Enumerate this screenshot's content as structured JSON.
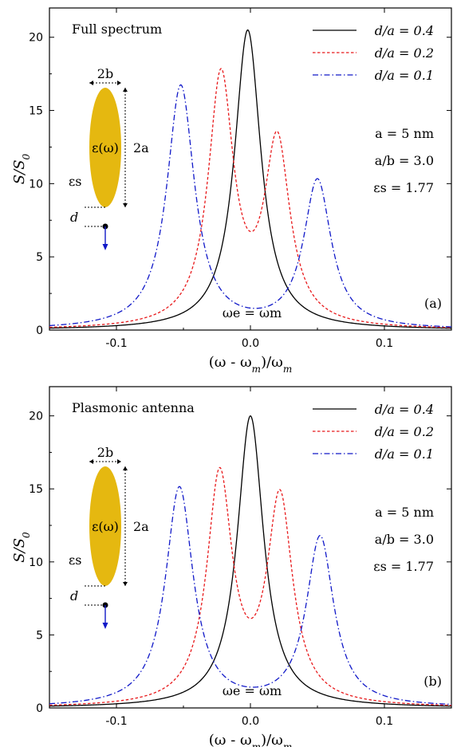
{
  "chart_data": [
    {
      "type": "line",
      "panel_label": "(a)",
      "title": "Full spectrum",
      "xlabel": "(ω - ω_m)/ω_m",
      "ylabel": "S/S_0",
      "xlim": [
        -0.15,
        0.15
      ],
      "ylim": [
        0,
        22
      ],
      "xticks": [
        "-0.1",
        "0.0",
        "0.1"
      ],
      "xtick_values": [
        -0.1,
        0.0,
        0.1
      ],
      "yticks": [
        "0",
        "5",
        "10",
        "15",
        "20"
      ],
      "ytick_values": [
        0,
        5,
        10,
        15,
        20
      ],
      "grid": false,
      "legend_position": "top-right",
      "series": [
        {
          "name": "d/a = 0.4",
          "color": "#000000",
          "dash": "solid",
          "peaks": [
            {
              "x0": -0.002,
              "height": 20.5,
              "width": 0.012
            }
          ]
        },
        {
          "name": "d/a = 0.2",
          "color": "#e8191b",
          "dash": "dashed",
          "peaks": [
            {
              "x0": -0.022,
              "height": 17.0,
              "width": 0.0115
            },
            {
              "x0": 0.02,
              "height": 12.4,
              "width": 0.0115
            }
          ]
        },
        {
          "name": "d/a = 0.1",
          "color": "#1018c8",
          "dash": "dashdot",
          "peaks": [
            {
              "x0": -0.052,
              "height": 16.6,
              "width": 0.0125
            },
            {
              "x0": 0.05,
              "height": 10.1,
              "width": 0.0125
            }
          ]
        }
      ],
      "annotations": {
        "param_a": "a = 5 nm",
        "param_ab": "a/b = 3.0",
        "param_eps": "εs = 1.77",
        "resonance": "ωe = ωm",
        "inset_width": "2b",
        "inset_height": "2a",
        "inset_particle": "ε(ω)",
        "inset_medium": "εs",
        "inset_distance": "d"
      }
    },
    {
      "type": "line",
      "panel_label": "(b)",
      "title": "Plasmonic antenna",
      "xlabel": "(ω - ω_m)/ω_m",
      "ylabel": "S/S_0",
      "xlim": [
        -0.15,
        0.15
      ],
      "ylim": [
        0,
        22
      ],
      "xticks": [
        "-0.1",
        "0.0",
        "0.1"
      ],
      "xtick_values": [
        -0.1,
        0.0,
        0.1
      ],
      "yticks": [
        "0",
        "5",
        "10",
        "15",
        "20"
      ],
      "ytick_values": [
        0,
        5,
        10,
        15,
        20
      ],
      "grid": false,
      "legend_position": "top-right",
      "series": [
        {
          "name": "d/a = 0.4",
          "color": "#000000",
          "dash": "solid",
          "peaks": [
            {
              "x0": 0.0,
              "height": 20.0,
              "width": 0.012
            }
          ]
        },
        {
          "name": "d/a = 0.2",
          "color": "#e8191b",
          "dash": "dashed",
          "peaks": [
            {
              "x0": -0.023,
              "height": 15.6,
              "width": 0.0115
            },
            {
              "x0": 0.022,
              "height": 14.0,
              "width": 0.0115
            }
          ]
        },
        {
          "name": "d/a = 0.1",
          "color": "#1018c8",
          "dash": "dashdot",
          "peaks": [
            {
              "x0": -0.053,
              "height": 15.0,
              "width": 0.0125
            },
            {
              "x0": 0.052,
              "height": 11.6,
              "width": 0.0125
            }
          ]
        }
      ],
      "annotations": {
        "param_a": "a = 5 nm",
        "param_ab": "a/b = 3.0",
        "param_eps": "εs = 1.77",
        "resonance": "ωe = ωm",
        "inset_width": "2b",
        "inset_height": "2a",
        "inset_particle": "ε(ω)",
        "inset_medium": "εs",
        "inset_distance": "d"
      }
    }
  ]
}
